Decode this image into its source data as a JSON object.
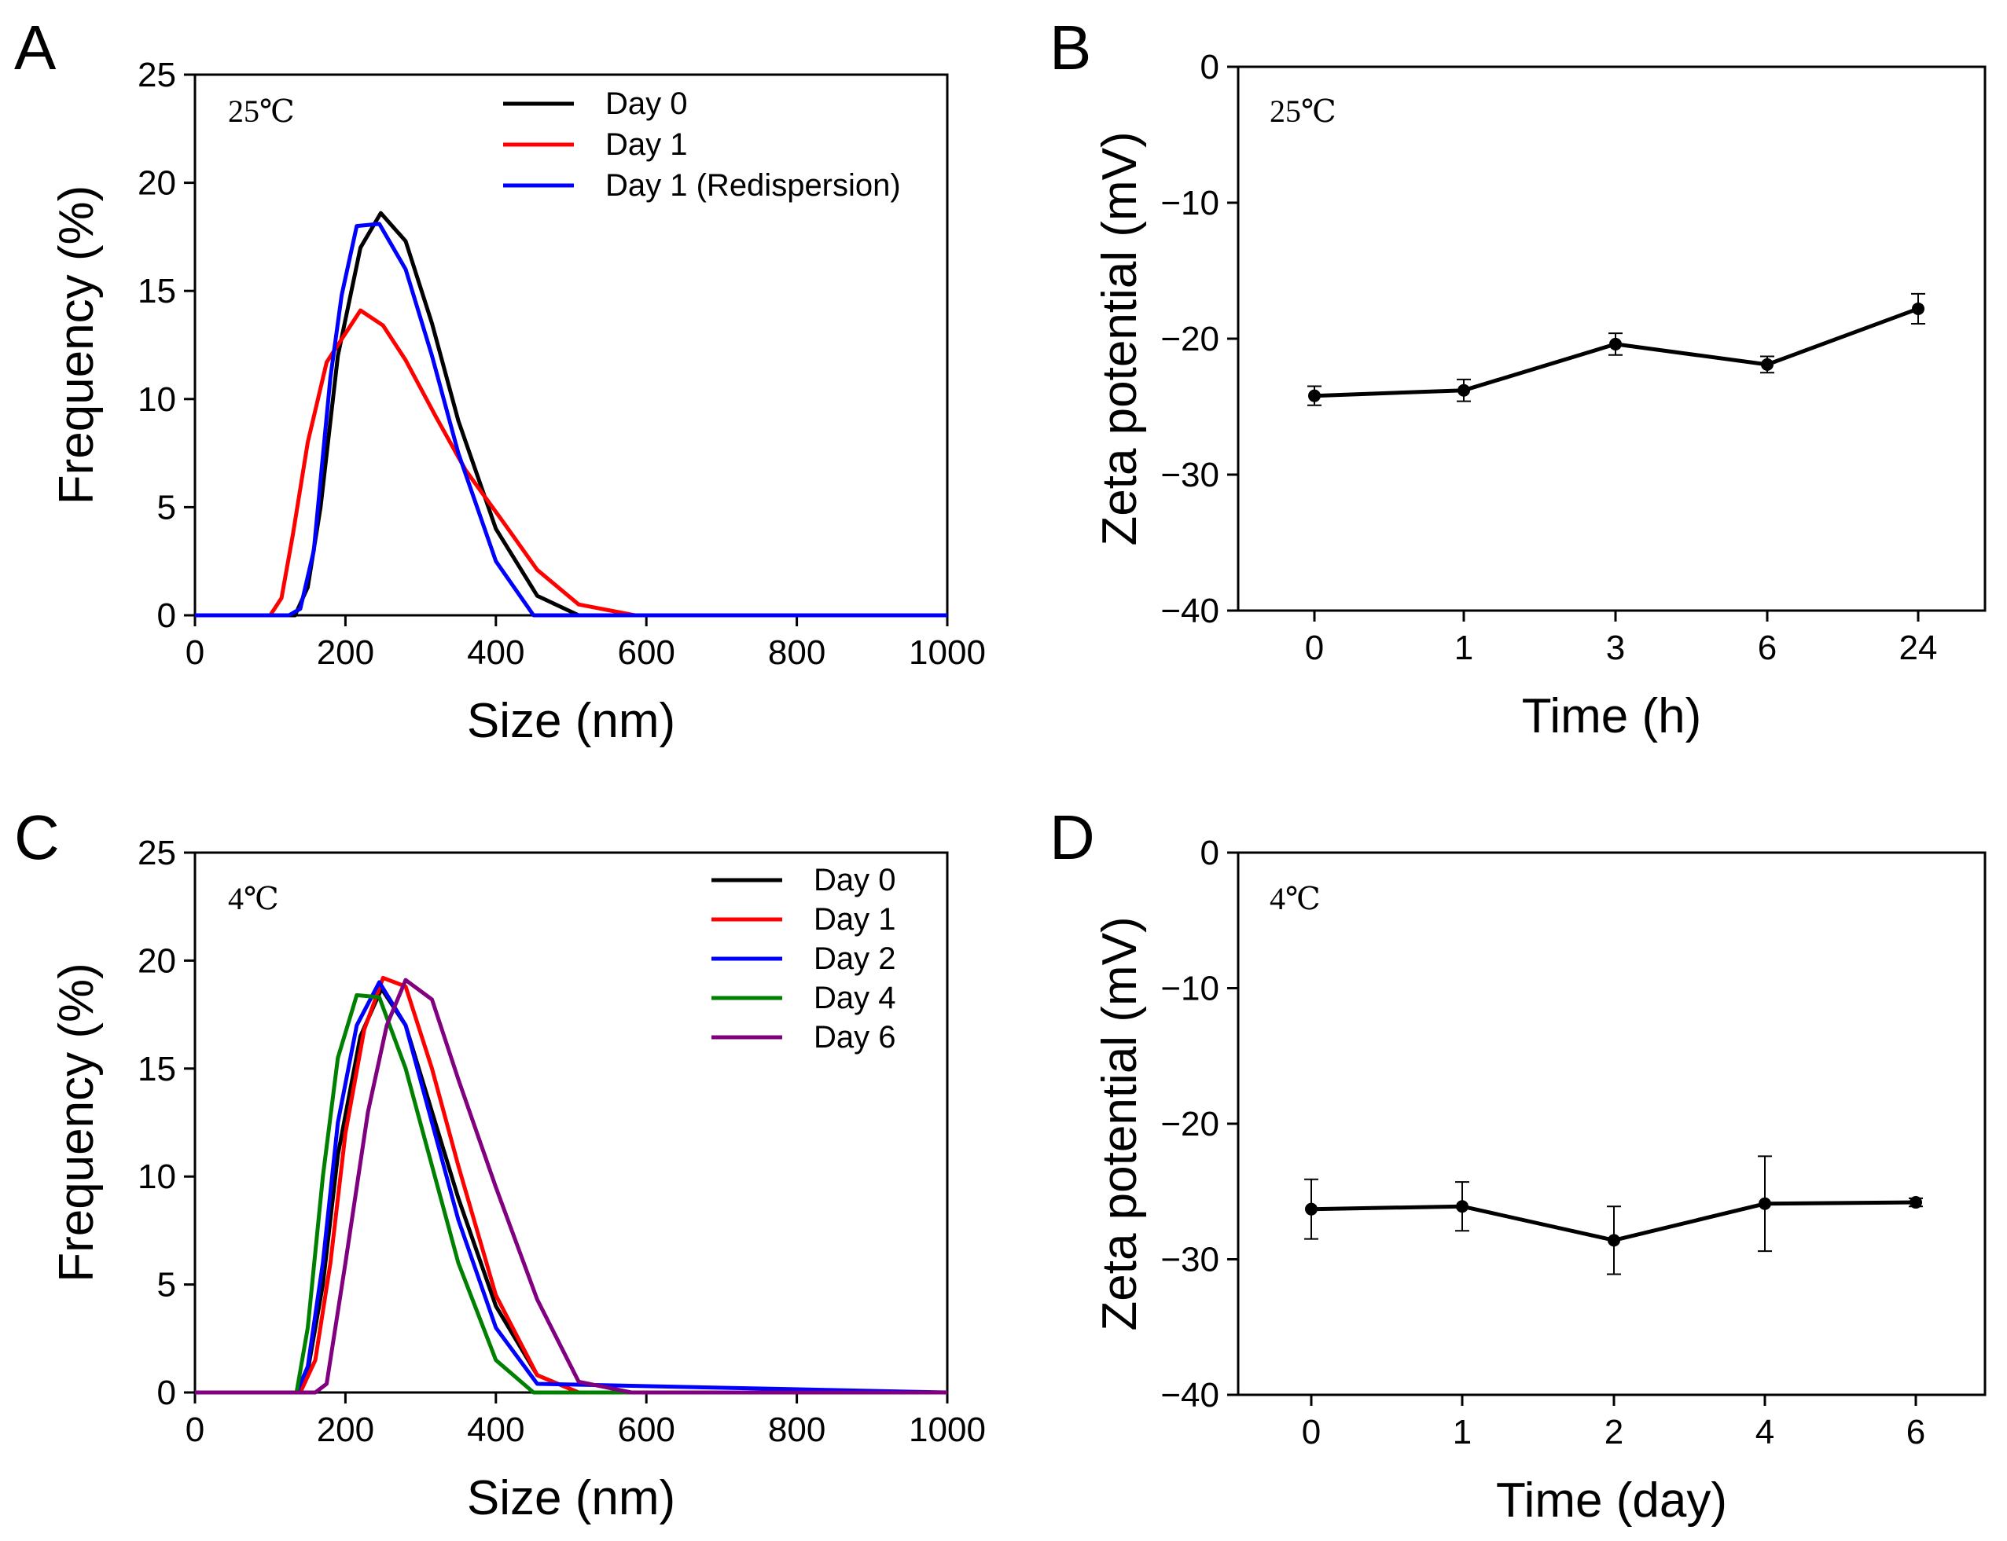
{
  "chart_data": [
    {
      "panel_label": "A",
      "type": "line",
      "annotation": "25℃",
      "xlabel": "Size (nm)",
      "ylabel": "Frequency (%)",
      "xlim": [
        0,
        1000
      ],
      "ylim": [
        0,
        25
      ],
      "xticks": [
        0,
        200,
        400,
        600,
        800,
        1000
      ],
      "xtick_labels": [
        "0",
        "200",
        "400",
        "600",
        "800",
        "1000"
      ],
      "yticks": [
        0,
        5,
        10,
        15,
        20,
        25
      ],
      "ytick_labels": [
        "0",
        "5",
        "10",
        "15",
        "20",
        "25"
      ],
      "legend": "top-right",
      "series": [
        {
          "name": "Day 0",
          "color": "#000000",
          "x": [
            0,
            100,
            133,
            150,
            167,
            190,
            220,
            247,
            280,
            315,
            350,
            400,
            455,
            510,
            600,
            1000
          ],
          "y": [
            0,
            0,
            0,
            1.3,
            5.0,
            12.0,
            17.0,
            18.6,
            17.3,
            13.5,
            9.0,
            4.0,
            0.9,
            0,
            0,
            0
          ]
        },
        {
          "name": "Day 1",
          "color": "#ff0000",
          "x": [
            0,
            100,
            115,
            130,
            150,
            175,
            220,
            250,
            280,
            320,
            360,
            410,
            455,
            510,
            585,
            1000
          ],
          "y": [
            0,
            0,
            0.8,
            3.7,
            8.0,
            11.7,
            14.1,
            13.4,
            11.8,
            9.2,
            6.7,
            4.3,
            2.1,
            0.5,
            0,
            0
          ]
        },
        {
          "name": "Day 1 (Redispersion)",
          "color": "#0000ff",
          "x": [
            0,
            125,
            140,
            158,
            180,
            195,
            215,
            245,
            280,
            315,
            350,
            400,
            450,
            1000
          ],
          "y": [
            0,
            0,
            0.3,
            3.0,
            11.0,
            14.8,
            18.0,
            18.1,
            16.0,
            12.0,
            7.5,
            2.5,
            0,
            0
          ]
        }
      ]
    },
    {
      "panel_label": "B",
      "type": "line",
      "annotation": "25℃",
      "xlabel": "Time (h)",
      "ylabel": "Zeta potential (mV)",
      "ylim": [
        -40,
        0
      ],
      "yticks": [
        -40,
        -30,
        -20,
        -10,
        0
      ],
      "ytick_labels": [
        "−40",
        "−30",
        "−20",
        "−10",
        "0"
      ],
      "categories": [
        "0",
        "1",
        "3",
        "6",
        "24"
      ],
      "series": [
        {
          "name": "Zeta potential",
          "color": "#000000",
          "values": [
            -24.2,
            -23.8,
            -20.4,
            -21.9,
            -17.8
          ],
          "errors": [
            0.7,
            0.8,
            0.8,
            0.6,
            1.1
          ]
        }
      ]
    },
    {
      "panel_label": "C",
      "type": "line",
      "annotation": "4℃",
      "xlabel": "Size (nm)",
      "ylabel": "Frequency (%)",
      "xlim": [
        0,
        1000
      ],
      "ylim": [
        0,
        25
      ],
      "xticks": [
        0,
        200,
        400,
        600,
        800,
        1000
      ],
      "xtick_labels": [
        "0",
        "200",
        "400",
        "600",
        "800",
        "1000"
      ],
      "yticks": [
        0,
        5,
        10,
        15,
        20,
        25
      ],
      "ytick_labels": [
        "0",
        "5",
        "10",
        "15",
        "20",
        "25"
      ],
      "legend": "top-right",
      "series": [
        {
          "name": "Day 0",
          "color": "#000000",
          "x": [
            0,
            135,
            150,
            170,
            190,
            220,
            248,
            280,
            315,
            350,
            400,
            455,
            510,
            1000
          ],
          "y": [
            0,
            0,
            1.0,
            5.0,
            11.0,
            16.5,
            18.7,
            17.0,
            13.0,
            9.0,
            4.0,
            0.8,
            0,
            0
          ]
        },
        {
          "name": "Day 1",
          "color": "#ff0000",
          "x": [
            0,
            140,
            160,
            180,
            200,
            225,
            250,
            280,
            315,
            350,
            400,
            455,
            510,
            1000
          ],
          "y": [
            0,
            0,
            1.5,
            6.0,
            12.0,
            16.8,
            19.2,
            18.8,
            15.0,
            10.5,
            4.5,
            0.8,
            0,
            0
          ]
        },
        {
          "name": "Day 2",
          "color": "#0000ff",
          "x": [
            0,
            135,
            150,
            170,
            190,
            215,
            245,
            280,
            315,
            350,
            400,
            455,
            1000
          ],
          "y": [
            0,
            0,
            1.2,
            6.0,
            12.5,
            17.0,
            19.0,
            17.0,
            12.5,
            8.0,
            3.0,
            0.4,
            0
          ],
          "line_end": 455
        },
        {
          "name": "Day 4",
          "color": "#008000",
          "x": [
            0,
            135,
            150,
            170,
            190,
            215,
            245,
            280,
            315,
            350,
            400,
            450,
            1000
          ],
          "y": [
            0,
            0,
            3.0,
            10.0,
            15.5,
            18.4,
            18.3,
            15.0,
            10.5,
            6.0,
            1.5,
            0,
            0
          ]
        },
        {
          "name": "Day 6",
          "color": "#800080",
          "x": [
            0,
            160,
            175,
            200,
            230,
            255,
            280,
            315,
            350,
            400,
            455,
            510,
            580,
            1000
          ],
          "y": [
            0,
            0,
            0.4,
            6.0,
            13.0,
            17.0,
            19.1,
            18.2,
            14.5,
            9.5,
            4.3,
            0.5,
            0,
            0
          ]
        }
      ]
    },
    {
      "panel_label": "D",
      "type": "line",
      "annotation": "4℃",
      "xlabel": "Time (day)",
      "ylabel": "Zeta potential (mV)",
      "ylim": [
        -40,
        0
      ],
      "yticks": [
        -40,
        -30,
        -20,
        -10,
        0
      ],
      "ytick_labels": [
        "−40",
        "−30",
        "−20",
        "−10",
        "0"
      ],
      "categories": [
        "0",
        "1",
        "2",
        "4",
        "6"
      ],
      "series": [
        {
          "name": "Zeta potential",
          "color": "#000000",
          "values": [
            -26.3,
            -26.1,
            -28.6,
            -25.9,
            -25.8
          ],
          "errors": [
            2.2,
            1.8,
            2.5,
            3.5,
            0.3
          ]
        }
      ]
    }
  ]
}
